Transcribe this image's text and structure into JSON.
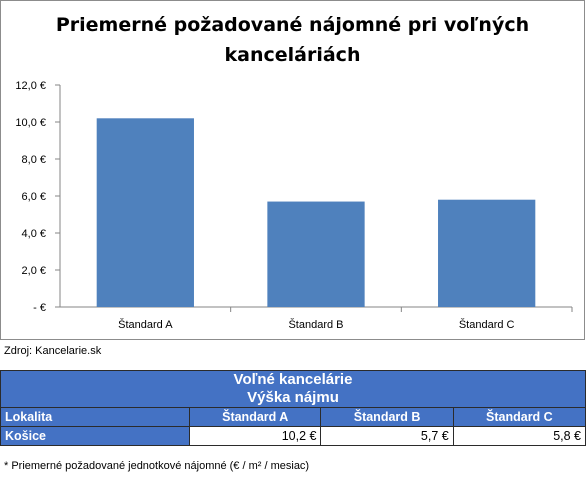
{
  "chart_data": {
    "type": "bar",
    "title_lines": [
      "Priemerné požadované nájomné pri voľných",
      "kanceláriách"
    ],
    "categories": [
      "Štandard A",
      "Štandard B",
      "Štandard C"
    ],
    "values": [
      10.2,
      5.7,
      5.8
    ],
    "ylim": [
      0,
      12
    ],
    "yticks": [
      {
        "value": 0,
        "label": "-  €"
      },
      {
        "value": 2,
        "label": "2,0 €"
      },
      {
        "value": 4,
        "label": "4,0 €"
      },
      {
        "value": 6,
        "label": "6,0 €"
      },
      {
        "value": 8,
        "label": "8,0 €"
      },
      {
        "value": 10,
        "label": "10,0 €"
      },
      {
        "value": 12,
        "label": "12,0 €"
      }
    ],
    "grid": false,
    "bar_color": "#4f81bd"
  },
  "source": "Zdroj: Kancelarie.sk",
  "table": {
    "title1": "Voľné kancelárie",
    "title2": "Výška nájmu",
    "col_location": "Lokalita",
    "columns": [
      "Štandard A",
      "Štandard B",
      "Štandard C"
    ],
    "row_location": "Košice",
    "row_values": [
      "10,2 €",
      "5,7 €",
      "5,8 €"
    ]
  },
  "note": "* Priemerné požadované jednotkové nájomné (€ / m² / mesiac)",
  "colors": {
    "header": "#4472c4",
    "bar": "#4f81bd"
  }
}
